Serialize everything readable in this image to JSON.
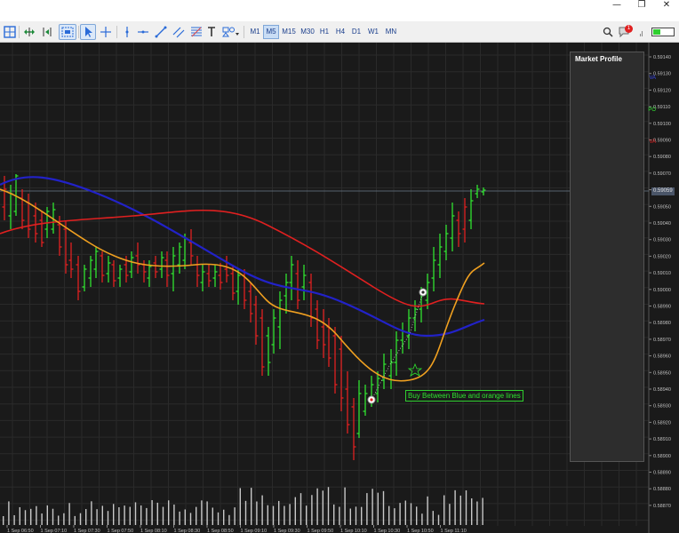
{
  "window": {
    "minimize_icon": "minimize-icon",
    "restore_icon": "restore-icon",
    "close_icon": "close-icon"
  },
  "toolbar": {
    "timeframes": [
      "M1",
      "M5",
      "M15",
      "M30",
      "H1",
      "H4",
      "D1",
      "W1",
      "MN"
    ],
    "active_timeframe": "M5",
    "notification_count": "1",
    "icons": [
      "chart-grid-icon",
      "scroll-chart-icon",
      "chart-shift-icon",
      "zoom-icon",
      "cursor-icon",
      "crosshair-icon",
      "horizontal-line-icon",
      "trendline-icon",
      "channel-icon",
      "fibonacci-icon",
      "text-icon",
      "shapes-icon"
    ]
  },
  "chart": {
    "colors": {
      "background": "#1a1a1a",
      "bull_candle": "#2fe22f",
      "bear_candle": "#e02020",
      "blue_line": "#2222c8",
      "orange_line": "#f0a020",
      "red_line": "#e02020",
      "profile_bar": "#e08a4a",
      "profile_poc": "#3a4aee",
      "profile_highlight": "#33e633"
    },
    "price_labels": [
      "0.59140",
      "0.59130",
      "0.59120",
      "0.59110",
      "0.59100",
      "0.59090",
      "0.59080",
      "0.59070",
      "0.59060",
      "0.59050",
      "0.59040",
      "0.59030",
      "0.59020",
      "0.59010",
      "0.59000",
      "0.58990",
      "0.58980",
      "0.58970",
      "0.58960",
      "0.58950",
      "0.58940",
      "0.58930",
      "0.58920",
      "0.58910",
      "0.58900",
      "0.58890",
      "0.58880",
      "0.58870"
    ],
    "current_price": "0.59059",
    "time_labels": [
      "1 Sep 06:50",
      "1 Sep 07:10",
      "1 Sep 07:30",
      "1 Sep 07:50",
      "1 Sep 08:10",
      "1 Sep 08:30",
      "1 Sep 08:50",
      "1 Sep 09:10",
      "1 Sep 09:30",
      "1 Sep 09:50",
      "1 Sep 10:10",
      "1 Sep 10:30",
      "1 Sep 10:50",
      "1 Sep 11:10"
    ],
    "buy_label": "Buy Between Blue and orange lines"
  },
  "market_profile": {
    "title": "Market Profile",
    "levels": {
      "vah": "VA",
      "poc": "PO",
      "val": "VA"
    }
  }
}
